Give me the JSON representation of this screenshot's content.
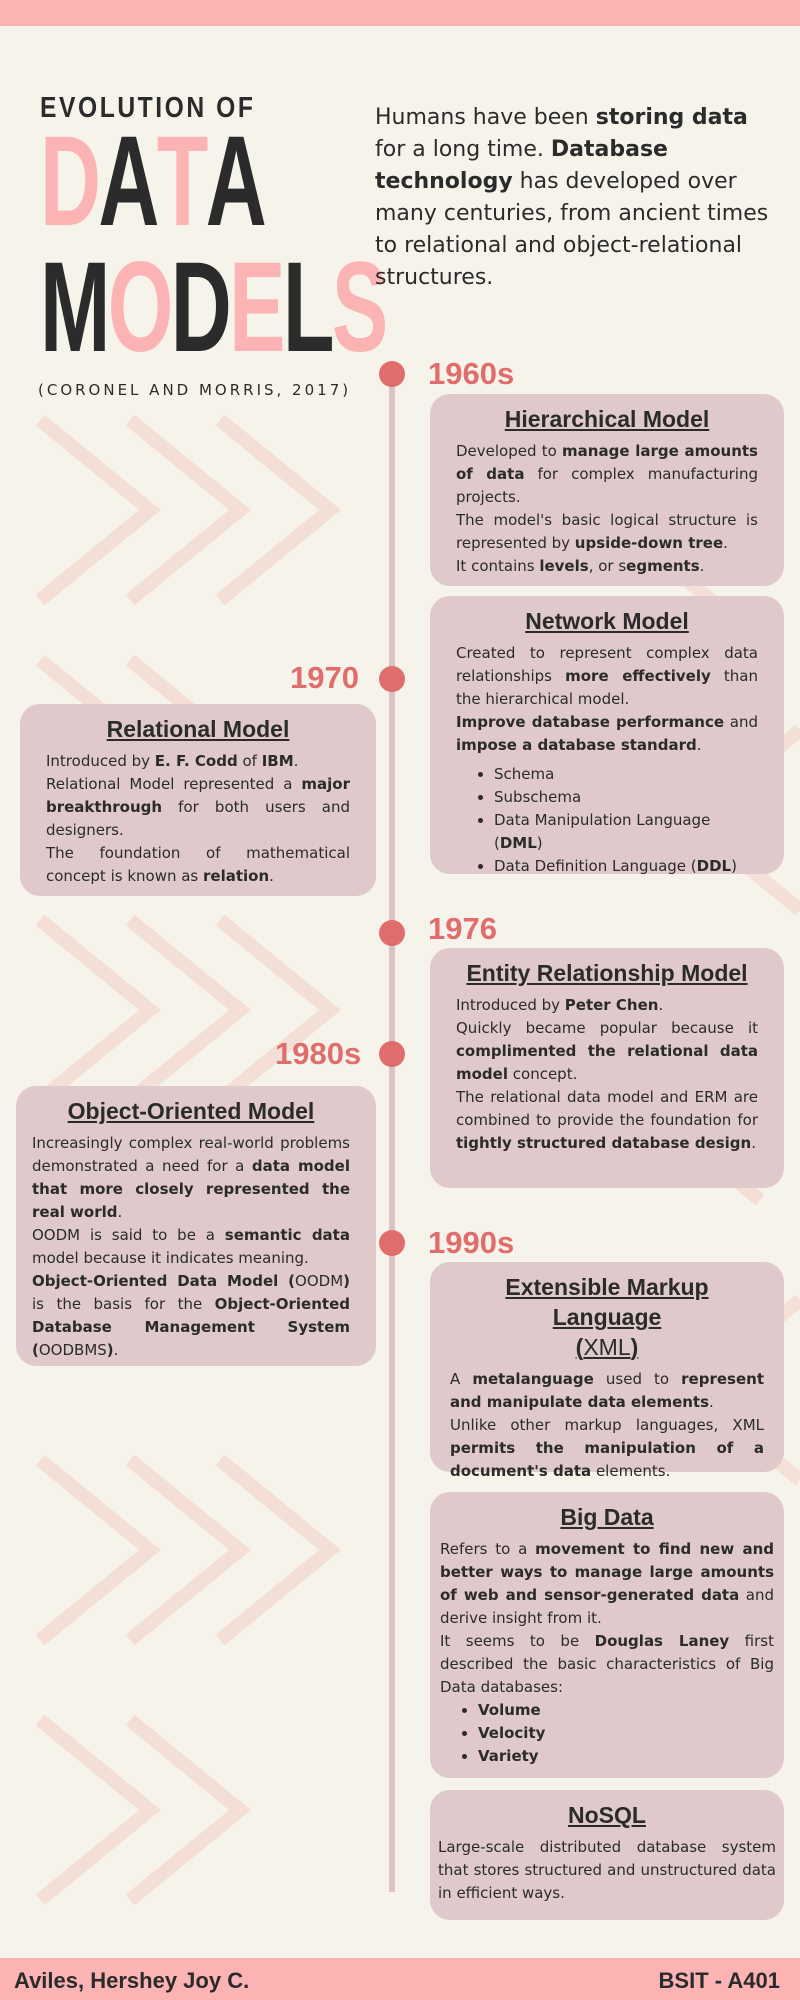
{
  "header": {
    "title_small": "EVOLUTION OF",
    "title_word1": [
      "D",
      "A",
      "T",
      "A"
    ],
    "title_word2": [
      "M",
      "O",
      "D",
      "E",
      "L",
      "S"
    ],
    "citation": "(CORONEL AND MORRIS, 2017)",
    "intro": {
      "t1": "Humans have been ",
      "b1": "storing data",
      "t2": " for a long time. ",
      "b2": "Database technology",
      "t3": " has developed over many centuries, from ancient times to relational and object-relational structures."
    }
  },
  "colors": {
    "accent": "#e06c6c",
    "pink": "#fcb3b3",
    "card": "#dfc9ca",
    "background": "#f6f4ea",
    "dark": "#2b2b2b"
  },
  "years": {
    "y1960s": "1960s",
    "y1970": "1970",
    "y1976": "1976",
    "y1980s": "1980s",
    "y1990s": "1990s"
  },
  "cards": {
    "hierarchical": {
      "title": "Hierarchical Model",
      "p1": "Developed to ",
      "p1b": "manage large amounts of data",
      "p1c": " for complex manufacturing projects.",
      "p2": "The model's basic logical structure is represented by ",
      "p2b": "upside-down tree",
      "p2c": ".",
      "p3": "It contains ",
      "p3b": "levels",
      "p3c": ", or s",
      "p3d": "egments",
      "p3e": "."
    },
    "network": {
      "title": "Network Model",
      "p1": "Created to represent complex data relationships ",
      "p1b": "more effectively",
      "p1c": " than the hierarchical model.",
      "p2b": "Improve database performance",
      "p2": " and ",
      "p2b2": "impose a database standard",
      "p2c": ".",
      "items": [
        "Schema",
        "Subschema",
        "Data Manipulation Language (",
        "DML",
        ")",
        "Data Definition Language (",
        "DDL",
        ")"
      ]
    },
    "relational": {
      "title": "Relational Model",
      "p1": "Introduced by ",
      "p1b": "E. F. Codd",
      "p1c": " of ",
      "p1d": "IBM",
      "p1e": ".",
      "p2": "Relational Model represented a ",
      "p2b": "major breakthrough",
      "p2c": " for both users and designers.",
      "p3": "The foundation of mathematical concept is known as ",
      "p3b": "relation",
      "p3c": "."
    },
    "er": {
      "title": "Entity Relationship Model",
      "p1": "Introduced by ",
      "p1b": "Peter Chen",
      "p1c": ".",
      "p2": "Quickly became popular because it ",
      "p2b": "complimented the relational data model",
      "p2c": " concept.",
      "p3": "The relational data model and ERM are combined to provide the foundation for ",
      "p3b": "tightly structured database design",
      "p3c": "."
    },
    "oo": {
      "title": "Object-Oriented Model",
      "p1": "Increasingly complex real-world problems demonstrated a need for a ",
      "p1b": "data model that more closely represented the real world",
      "p1c": ".",
      "p2": "OODM is said to be a ",
      "p2b": "semantic data",
      "p2c": " model because it indicates meaning.",
      "p3b": "Object-Oriented Data Model (",
      "p3": "OODM",
      "p3b2": ")",
      "p3c": " is the basis for the ",
      "p3d": "Object-Oriented Database Management System (",
      "p3e": "OODBMS",
      "p3f": ")",
      "p3g": "."
    },
    "xml": {
      "title": "Extensible Markup Language",
      "title2a": "(",
      "title2b": "XML",
      "title2c": ")",
      "p1": "A ",
      "p1b": "metalanguage",
      "p1c": " used to ",
      "p1d": "represent and manipulate data elements",
      "p1e": ".",
      "p2": "Unlike other markup languages, XML ",
      "p2b": "permits the manipulation of a document's data",
      "p2c": " elements."
    },
    "bigdata": {
      "title": "Big Data",
      "p1": "Refers to a ",
      "p1b": "movement to find new and better ways to manage large amounts of web and sensor-generated data",
      "p1c": " and derive insight from it.",
      "p2": "It seems to be ",
      "p2b": "Douglas Laney",
      "p2c": " first described the basic characteristics of Big Data databases:",
      "items": [
        "Volume",
        "Velocity",
        "Variety"
      ]
    },
    "nosql": {
      "title": "NoSQL",
      "p1": "Large-scale distributed database system that stores structured and unstructured data in efficient ways."
    }
  },
  "footer": {
    "author": "Aviles, Hershey Joy C.",
    "section": "BSIT - A401"
  }
}
